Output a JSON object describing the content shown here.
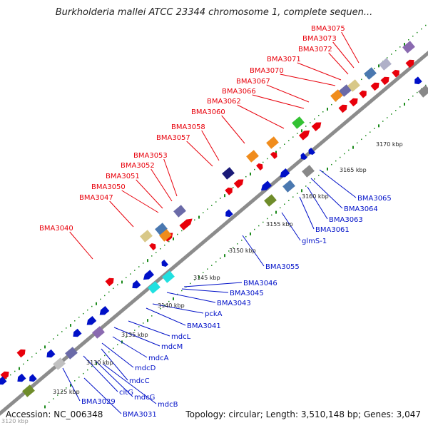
{
  "title": "Burkholderia mallei ATCC 23344 chromosome 1, complete sequen...",
  "accession": "Accession: NC_006348",
  "topology": "Topology: circular; Length: 3,510,148 bp; Genes: 3,047",
  "cut_label": "3120 kbp",
  "colors": {
    "top_label": "#e8000b",
    "bottom_label": "#0010c8",
    "backbone": "#8c8c8c",
    "tick_green": "#1b8a1b"
  },
  "ticks": [
    {
      "label": "3125 kbp"
    },
    {
      "label": "3130 kbp"
    },
    {
      "label": "3135 kbp"
    },
    {
      "label": "3140 kbp"
    },
    {
      "label": "3145 kbp"
    },
    {
      "label": "3150 kbp"
    },
    {
      "label": "3155 kbp"
    },
    {
      "label": "3160 kbp"
    },
    {
      "label": "3165 kbp"
    },
    {
      "label": "3170 kbp"
    }
  ],
  "top_genes": [
    {
      "name": "BMA3075"
    },
    {
      "name": "BMA3073"
    },
    {
      "name": "BMA3072"
    },
    {
      "name": "BMA3071"
    },
    {
      "name": "BMA3070"
    },
    {
      "name": "BMA3067"
    },
    {
      "name": "BMA3066"
    },
    {
      "name": "BMA3062"
    },
    {
      "name": "BMA3060"
    },
    {
      "name": "BMA3058"
    },
    {
      "name": "BMA3057"
    },
    {
      "name": "BMA3053"
    },
    {
      "name": "BMA3052"
    },
    {
      "name": "BMA3051"
    },
    {
      "name": "BMA3050"
    },
    {
      "name": "BMA3047"
    },
    {
      "name": "BMA3040"
    }
  ],
  "bottom_genes": [
    {
      "name": "BMA3065"
    },
    {
      "name": "BMA3064"
    },
    {
      "name": "BMA3063"
    },
    {
      "name": "BMA3061"
    },
    {
      "name": "glmS-1"
    },
    {
      "name": "BMA3055"
    },
    {
      "name": "BMA3046"
    },
    {
      "name": "BMA3045"
    },
    {
      "name": "BMA3043"
    },
    {
      "name": "pckA"
    },
    {
      "name": "BMA3041"
    },
    {
      "name": "mdcL"
    },
    {
      "name": "mdcM"
    },
    {
      "name": "mdcA"
    },
    {
      "name": "mdcD"
    },
    {
      "name": "mdcC"
    },
    {
      "name": "citG"
    },
    {
      "name": "mdcG"
    },
    {
      "name": "mdcB"
    },
    {
      "name": "BMA3029"
    },
    {
      "name": "BMA3031"
    }
  ]
}
